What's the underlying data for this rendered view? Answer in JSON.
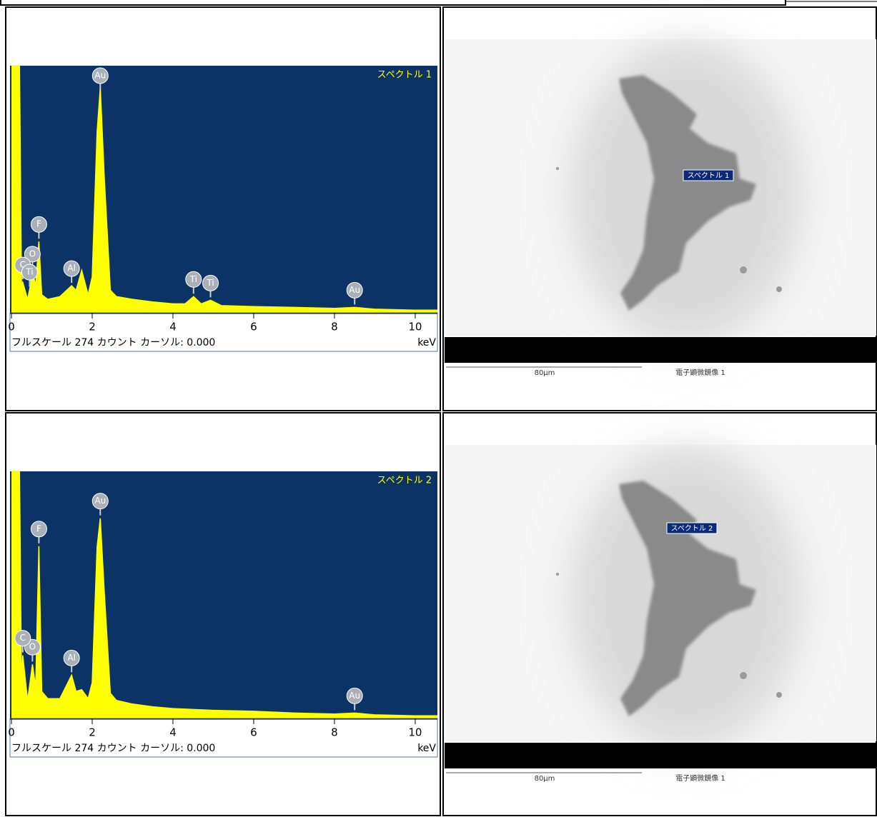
{
  "chart_data": [
    {
      "type": "area",
      "title": "スペクトル 1",
      "footer": "フルスケール 274 カウント カーソル: 0.000",
      "x_label": "keV",
      "color": "#ffff00",
      "background": "#0b3366",
      "x": [
        0,
        0.1,
        0.2,
        0.25,
        0.28,
        0.4,
        0.45,
        0.52,
        0.6,
        0.68,
        0.75,
        0.9,
        1.2,
        1.49,
        1.6,
        1.74,
        1.9,
        2.0,
        2.12,
        2.2,
        2.3,
        2.45,
        2.6,
        3,
        3.5,
        4,
        4.3,
        4.51,
        4.7,
        4.93,
        5.2,
        6,
        7,
        8,
        8.5,
        9,
        10,
        10.55
      ],
      "values": [
        274,
        274,
        274,
        30,
        34,
        15,
        26,
        46,
        30,
        79,
        20,
        15,
        18,
        30,
        25,
        47,
        20,
        40,
        200,
        250,
        150,
        25,
        18,
        15,
        12,
        10,
        10,
        18,
        10,
        14,
        8,
        7,
        6,
        5,
        6,
        4,
        3,
        3
      ],
      "annotations": [
        {
          "label": "Au",
          "x": 2.2
        },
        {
          "label": "F",
          "x": 0.68
        },
        {
          "label": "O",
          "x": 0.52
        },
        {
          "label": "C",
          "x": 0.28
        },
        {
          "label": "Ti",
          "x": 0.45
        },
        {
          "label": "Al",
          "x": 1.49
        },
        {
          "label": "Ti",
          "x": 4.51
        },
        {
          "label": "Ti",
          "x": 4.93
        },
        {
          "label": "Au",
          "x": 8.5
        }
      ],
      "xlim": [
        0,
        10.55
      ],
      "ylim": [
        0,
        274
      ],
      "xticks": [
        0,
        2,
        4,
        6,
        8,
        10
      ]
    },
    {
      "type": "area",
      "title": "スペクトル 2",
      "footer": "フルスケール 274 カウント カーソル: 0.000",
      "x_label": "keV",
      "color": "#ffff00",
      "background": "#0b3366",
      "x": [
        0,
        0.1,
        0.2,
        0.25,
        0.28,
        0.4,
        0.52,
        0.6,
        0.68,
        0.75,
        0.9,
        1.2,
        1.49,
        1.6,
        1.74,
        1.9,
        2.0,
        2.12,
        2.2,
        2.3,
        2.45,
        2.6,
        3,
        3.5,
        4,
        4.5,
        5,
        6,
        7,
        8,
        8.5,
        9,
        10,
        10.55
      ],
      "values": [
        274,
        274,
        274,
        40,
        70,
        20,
        60,
        35,
        191,
        30,
        22,
        22,
        48,
        30,
        32,
        22,
        40,
        190,
        222,
        140,
        28,
        20,
        16,
        13,
        11,
        10,
        9,
        8,
        6,
        5,
        6,
        4,
        3,
        3
      ],
      "annotations": [
        {
          "label": "Au",
          "x": 2.2
        },
        {
          "label": "F",
          "x": 0.68
        },
        {
          "label": "O",
          "x": 0.52
        },
        {
          "label": "C",
          "x": 0.28
        },
        {
          "label": "Al",
          "x": 1.49
        },
        {
          "label": "Au",
          "x": 8.5
        }
      ],
      "xlim": [
        0,
        10.55
      ],
      "ylim": [
        0,
        274
      ],
      "xticks": [
        0,
        2,
        4,
        6,
        8,
        10
      ]
    }
  ],
  "images": [
    {
      "marker": "スペクトル 1",
      "scale": "80μm",
      "caption": "電子顕微鏡像 1"
    },
    {
      "marker": "スペクトル 2",
      "scale": "80μm",
      "caption": "電子顕微鏡像 1"
    }
  ]
}
